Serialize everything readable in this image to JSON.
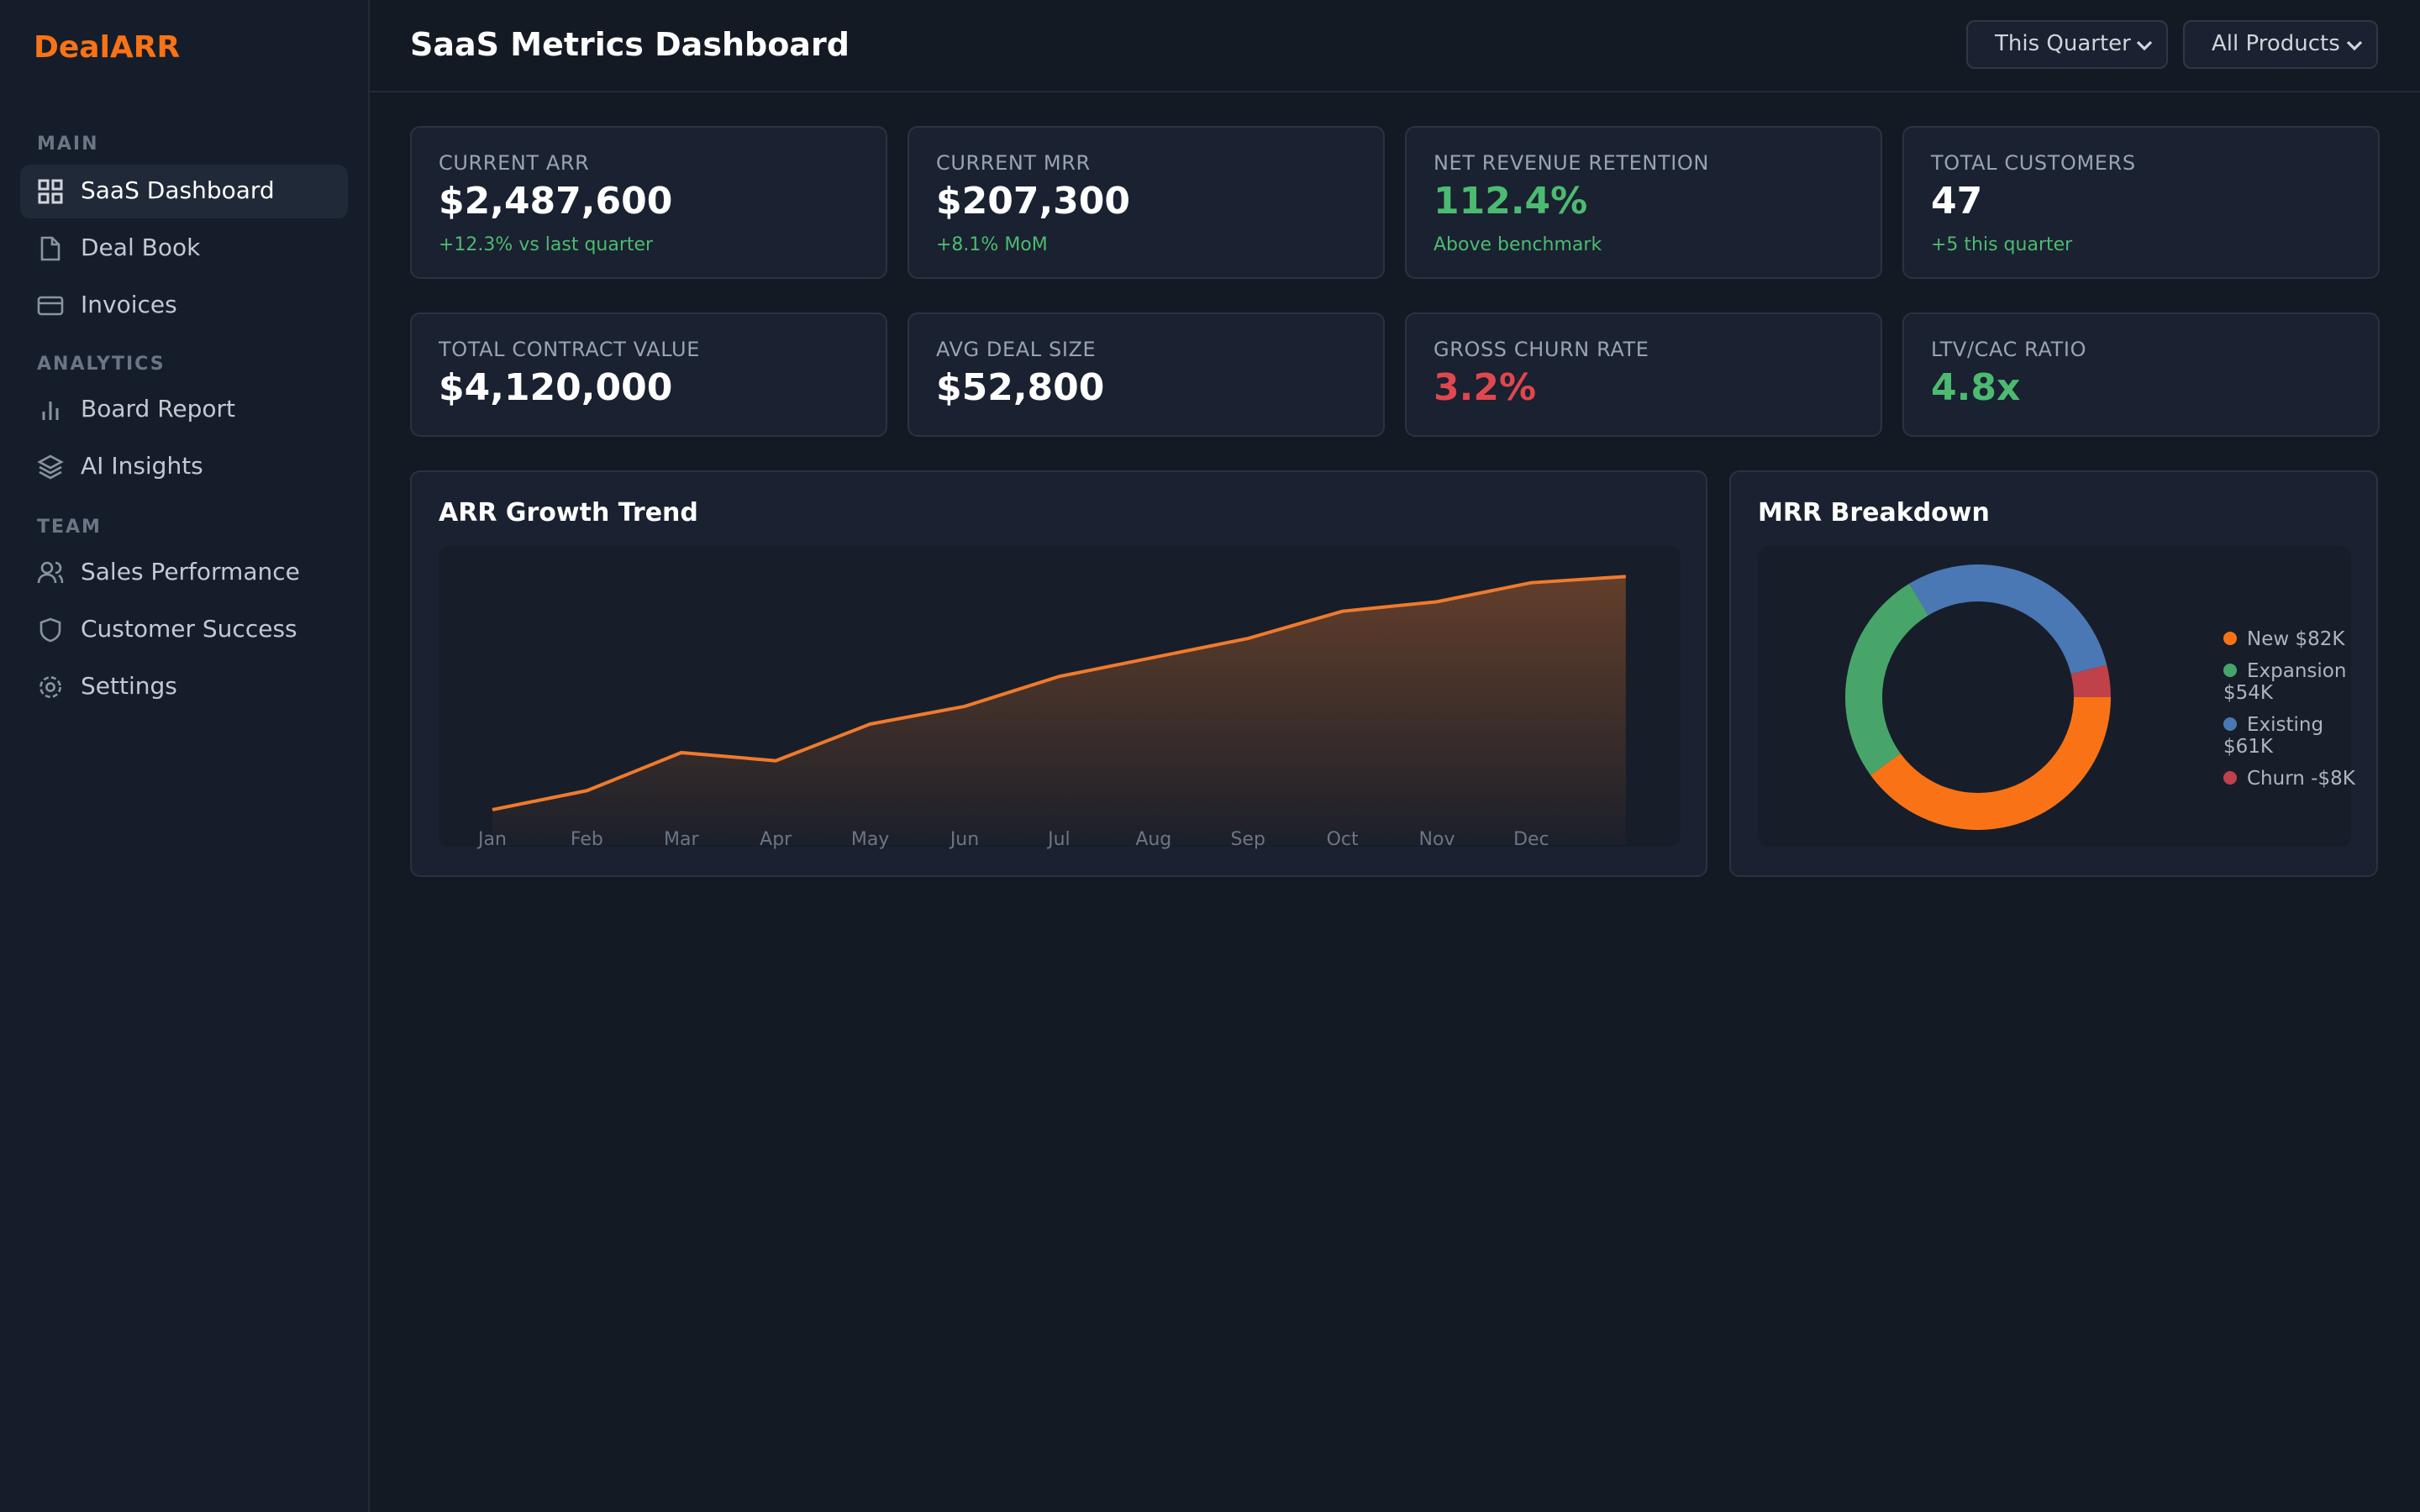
{
  "sidebar": {
    "logo": "DealARR",
    "sections": [
      {
        "title": "MAIN",
        "items": [
          "SaaS Dashboard",
          "Deal Book",
          "Invoices"
        ]
      },
      {
        "title": "ANALYTICS",
        "items": [
          "Board Report",
          "AI Insights"
        ]
      },
      {
        "title": "TEAM",
        "items": [
          "Sales Performance",
          "Customer Success",
          "Settings"
        ]
      }
    ]
  },
  "header": {
    "title": "SaaS Metrics Dashboard",
    "filters": [
      "This Quarter",
      "All Products"
    ]
  },
  "kpis": [
    {
      "label": "CURRENT ARR",
      "value": "$2,487,600",
      "note": "+12.3% vs last quarter"
    },
    {
      "label": "CURRENT MRR",
      "value": "$207,300",
      "note": "+8.1% MoM"
    },
    {
      "label": "NET REVENUE RETENTION",
      "value": "112.4%",
      "note": "Above benchmark"
    },
    {
      "label": "TOTAL CUSTOMERS",
      "value": "47",
      "note": "+5 this quarter"
    },
    {
      "label": "TOTAL CONTRACT VALUE",
      "value": "$4,120,000"
    },
    {
      "label": "AVG DEAL SIZE",
      "value": "$52,800"
    },
    {
      "label": "GROSS CHURN RATE",
      "value": "3.2%"
    },
    {
      "label": "LTV/CAC RATIO",
      "value": "4.8x"
    }
  ],
  "chart_data": [
    {
      "type": "line",
      "title": "ARR Growth Trend",
      "categories": [
        "Jan",
        "Feb",
        "Mar",
        "Apr",
        "May",
        "Jun",
        "Jul",
        "Aug",
        "Sep",
        "Oct",
        "Nov",
        "Dec",
        null
      ],
      "values": [
        1630000,
        1700000,
        1840000,
        1810000,
        1945000,
        2010000,
        2120000,
        2190000,
        2260000,
        2360000,
        2395000,
        2465000,
        2487600
      ],
      "color": "#f07a2c",
      "ylim": [
        1500000,
        2600000
      ]
    },
    {
      "type": "pie",
      "title": "MRR Breakdown",
      "categories": [
        "New",
        "Expansion",
        "Existing",
        "Churn"
      ],
      "values": [
        82000,
        54000,
        61000,
        -8000
      ],
      "value_labels": [
        "$82K",
        "$54K",
        "$61K",
        "-$8K"
      ],
      "colors": [
        "#f97316",
        "#48a56a",
        "#4a78b5",
        "#c0414a"
      ]
    }
  ]
}
